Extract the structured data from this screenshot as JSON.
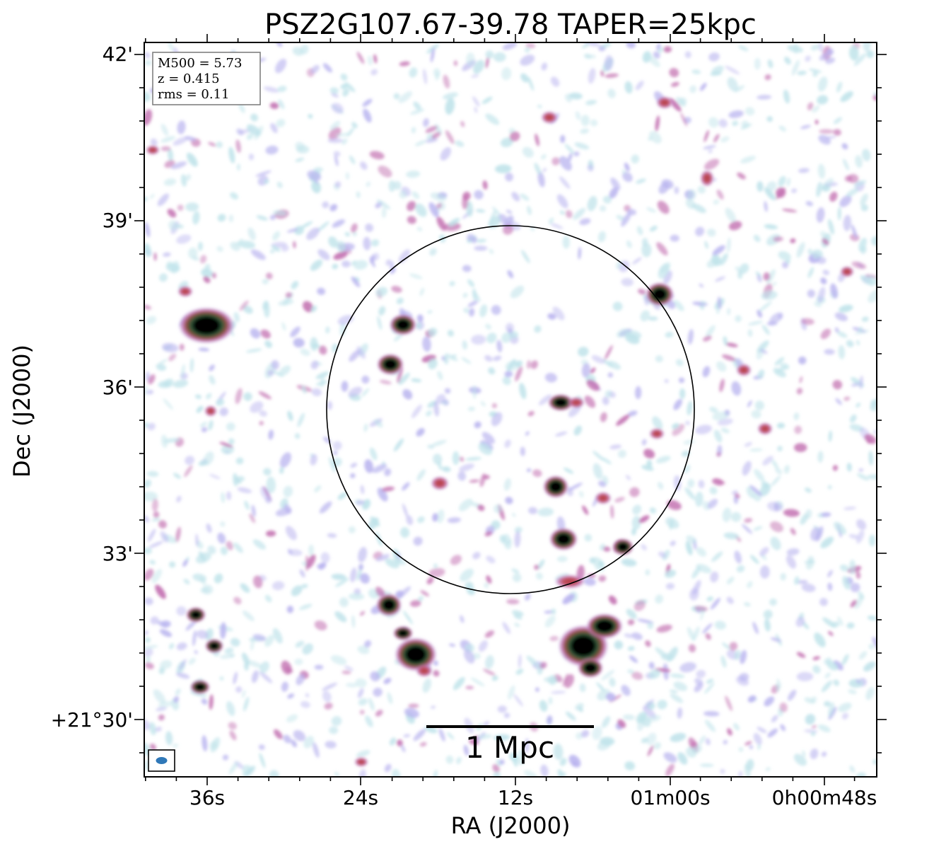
{
  "title": "PSZ2G107.67-39.78 TAPER=25kpc",
  "axes": {
    "xlabel": "RA (J2000)",
    "ylabel": "Dec (J2000)",
    "x_ticks": [
      "36s",
      "24s",
      "12s",
      "01m00s",
      "0h00m48s"
    ],
    "y_ticks": [
      "42'",
      "39'",
      "36'",
      "33'",
      "+21°30'"
    ]
  },
  "legend": {
    "lines": [
      "M500 = 5.73",
      "z = 0.415",
      "rms = 0.11"
    ]
  },
  "scale_bar": {
    "label": "1 Mpc"
  },
  "colors": {
    "background": "#ffffff",
    "noise_light": "#bfe3ea",
    "noise_purple": "#b9b4ef",
    "noise_magenta": "#c26fb0",
    "source_red": "#c0505a",
    "source_green": "#2e5a3a",
    "source_core": "#000000",
    "beam": "#2f78b8"
  }
}
